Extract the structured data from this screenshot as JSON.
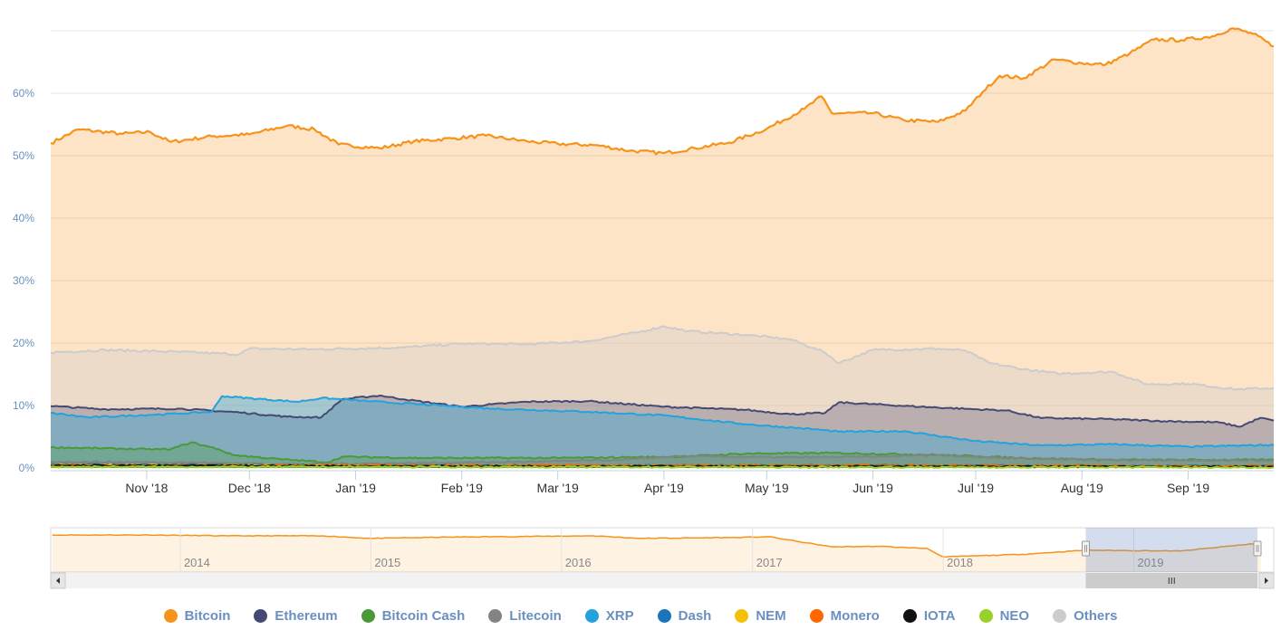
{
  "chart_data": {
    "type": "area",
    "title": "",
    "xlabel": "",
    "ylabel": "",
    "ylim": [
      0,
      70
    ],
    "y_ticks": [
      "0%",
      "10%",
      "20%",
      "30%",
      "40%",
      "50%",
      "60%"
    ],
    "x_ticks": [
      "Nov '18",
      "Dec '18",
      "Jan '19",
      "Feb '19",
      "Mar '19",
      "Apr '19",
      "May '19",
      "Jun '19",
      "Jul '19",
      "Aug '19",
      "Sep '19"
    ],
    "x_range": [
      "2018-10-04",
      "2019-09-26"
    ],
    "grid": true,
    "legend_position": "bottom",
    "series": [
      {
        "name": "Bitcoin",
        "color": "#f7931a",
        "points": [
          [
            "2018-10-04",
            52
          ],
          [
            "2018-10-12",
            54.2
          ],
          [
            "2018-10-25",
            53.5
          ],
          [
            "2018-11-02",
            53.8
          ],
          [
            "2018-11-08",
            52.2
          ],
          [
            "2018-11-20",
            53.1
          ],
          [
            "2018-12-01",
            53.4
          ],
          [
            "2018-12-12",
            54.8
          ],
          [
            "2018-12-20",
            54.2
          ],
          [
            "2018-12-27",
            51.8
          ],
          [
            "2019-01-08",
            51.2
          ],
          [
            "2019-01-18",
            52.3
          ],
          [
            "2019-01-30",
            52.8
          ],
          [
            "2019-02-08",
            53.2
          ],
          [
            "2019-02-20",
            52.3
          ],
          [
            "2019-03-01",
            51.9
          ],
          [
            "2019-03-12",
            51.7
          ],
          [
            "2019-03-22",
            50.8
          ],
          [
            "2019-04-01",
            50.4
          ],
          [
            "2019-04-10",
            51.2
          ],
          [
            "2019-04-20",
            52.1
          ],
          [
            "2019-05-01",
            54.3
          ],
          [
            "2019-05-12",
            57.5
          ],
          [
            "2019-05-17",
            59.5
          ],
          [
            "2019-05-20",
            56.8
          ],
          [
            "2019-06-01",
            56.8
          ],
          [
            "2019-06-10",
            55.7
          ],
          [
            "2019-06-20",
            55.4
          ],
          [
            "2019-06-28",
            57.2
          ],
          [
            "2019-07-03",
            60.2
          ],
          [
            "2019-07-08",
            62.8
          ],
          [
            "2019-07-15",
            62.4
          ],
          [
            "2019-07-24",
            65.4
          ],
          [
            "2019-08-01",
            64.8
          ],
          [
            "2019-08-08",
            64.6
          ],
          [
            "2019-08-15",
            66.4
          ],
          [
            "2019-08-22",
            68.6
          ],
          [
            "2019-08-30",
            68.5
          ],
          [
            "2019-09-08",
            69.1
          ],
          [
            "2019-09-14",
            70.4
          ],
          [
            "2019-09-20",
            69.5
          ],
          [
            "2019-09-26",
            67.5
          ]
        ]
      },
      {
        "name": "Others",
        "color": "#cccccc",
        "points": [
          [
            "2018-10-04",
            18.5
          ],
          [
            "2018-10-20",
            18.9
          ],
          [
            "2018-11-10",
            18.6
          ],
          [
            "2018-11-28",
            18.2
          ],
          [
            "2018-12-01",
            19.1
          ],
          [
            "2018-12-20",
            19.0
          ],
          [
            "2019-01-15",
            19.3
          ],
          [
            "2019-02-01",
            19.9
          ],
          [
            "2019-02-20",
            19.8
          ],
          [
            "2019-03-10",
            20.3
          ],
          [
            "2019-03-25",
            21.8
          ],
          [
            "2019-04-01",
            22.7
          ],
          [
            "2019-04-08",
            21.9
          ],
          [
            "2019-04-25",
            21.3
          ],
          [
            "2019-05-08",
            20.6
          ],
          [
            "2019-05-18",
            18.5
          ],
          [
            "2019-05-22",
            16.8
          ],
          [
            "2019-06-01",
            18.9
          ],
          [
            "2019-06-20",
            19.1
          ],
          [
            "2019-06-28",
            18.8
          ],
          [
            "2019-07-05",
            16.8
          ],
          [
            "2019-07-15",
            15.8
          ],
          [
            "2019-07-25",
            15.1
          ],
          [
            "2019-08-10",
            15.4
          ],
          [
            "2019-08-20",
            13.4
          ],
          [
            "2019-09-01",
            13.5
          ],
          [
            "2019-09-15",
            12.6
          ],
          [
            "2019-09-26",
            12.8
          ]
        ]
      },
      {
        "name": "Ethereum",
        "color": "#454a75",
        "points": [
          [
            "2018-10-04",
            9.9
          ],
          [
            "2018-10-20",
            9.4
          ],
          [
            "2018-11-10",
            9.5
          ],
          [
            "2018-11-28",
            8.9
          ],
          [
            "2018-12-12",
            8.2
          ],
          [
            "2018-12-22",
            8.1
          ],
          [
            "2018-12-28",
            11.0
          ],
          [
            "2019-01-08",
            11.6
          ],
          [
            "2019-01-15",
            11.0
          ],
          [
            "2019-02-01",
            9.8
          ],
          [
            "2019-02-20",
            10.6
          ],
          [
            "2019-03-10",
            10.7
          ],
          [
            "2019-04-01",
            9.8
          ],
          [
            "2019-04-25",
            9.3
          ],
          [
            "2019-05-08",
            8.6
          ],
          [
            "2019-05-18",
            8.8
          ],
          [
            "2019-05-22",
            10.5
          ],
          [
            "2019-06-15",
            9.8
          ],
          [
            "2019-07-01",
            9.4
          ],
          [
            "2019-07-10",
            9.2
          ],
          [
            "2019-07-20",
            8.0
          ],
          [
            "2019-08-10",
            7.8
          ],
          [
            "2019-08-25",
            7.5
          ],
          [
            "2019-09-10",
            7.3
          ],
          [
            "2019-09-16",
            6.6
          ],
          [
            "2019-09-22",
            8.0
          ],
          [
            "2019-09-26",
            7.6
          ]
        ]
      },
      {
        "name": "XRP",
        "color": "#23a3dd",
        "points": [
          [
            "2018-10-04",
            8.8
          ],
          [
            "2018-10-15",
            8.1
          ],
          [
            "2018-11-10",
            8.7
          ],
          [
            "2018-11-20",
            9.0
          ],
          [
            "2018-11-23",
            11.5
          ],
          [
            "2018-12-15",
            10.6
          ],
          [
            "2018-12-22",
            11.2
          ],
          [
            "2019-01-10",
            10.5
          ],
          [
            "2019-02-01",
            9.8
          ],
          [
            "2019-02-10",
            9.5
          ],
          [
            "2019-03-10",
            9.0
          ],
          [
            "2019-04-01",
            8.4
          ],
          [
            "2019-04-25",
            7.0
          ],
          [
            "2019-05-15",
            6.2
          ],
          [
            "2019-05-22",
            5.8
          ],
          [
            "2019-06-10",
            5.9
          ],
          [
            "2019-07-01",
            4.3
          ],
          [
            "2019-07-20",
            3.6
          ],
          [
            "2019-08-10",
            3.8
          ],
          [
            "2019-09-01",
            3.4
          ],
          [
            "2019-09-26",
            3.7
          ]
        ]
      },
      {
        "name": "Bitcoin Cash",
        "color": "#4a9a39",
        "points": [
          [
            "2018-10-04",
            3.3
          ],
          [
            "2018-11-01",
            3.0
          ],
          [
            "2018-11-08",
            3.0
          ],
          [
            "2018-11-14",
            4.1
          ],
          [
            "2018-11-22",
            3.0
          ],
          [
            "2018-11-26",
            2.1
          ],
          [
            "2018-12-10",
            1.4
          ],
          [
            "2018-12-24",
            0.9
          ],
          [
            "2018-12-28",
            1.8
          ],
          [
            "2019-01-20",
            1.6
          ],
          [
            "2019-03-01",
            1.6
          ],
          [
            "2019-04-05",
            1.8
          ],
          [
            "2019-04-25",
            2.3
          ],
          [
            "2019-05-20",
            2.4
          ],
          [
            "2019-06-20",
            2.1
          ],
          [
            "2019-07-15",
            1.6
          ],
          [
            "2019-08-10",
            1.3
          ],
          [
            "2019-09-26",
            1.3
          ]
        ]
      },
      {
        "name": "Litecoin",
        "color": "#838383",
        "points": [
          [
            "2018-10-04",
            1.0
          ],
          [
            "2018-11-10",
            0.9
          ],
          [
            "2018-12-15",
            0.6
          ],
          [
            "2019-01-20",
            0.8
          ],
          [
            "2019-02-20",
            1.0
          ],
          [
            "2019-03-20",
            1.3
          ],
          [
            "2019-04-05",
            1.9
          ],
          [
            "2019-05-05",
            1.7
          ],
          [
            "2019-06-01",
            1.8
          ],
          [
            "2019-06-20",
            2.1
          ],
          [
            "2019-07-10",
            1.6
          ],
          [
            "2019-08-10",
            1.3
          ],
          [
            "2019-09-26",
            1.2
          ]
        ]
      },
      {
        "name": "Dash",
        "color": "#1c75bc",
        "points": [
          [
            "2018-10-04",
            0.6
          ],
          [
            "2019-01-01",
            0.4
          ],
          [
            "2019-06-01",
            0.4
          ],
          [
            "2019-09-26",
            0.3
          ]
        ]
      },
      {
        "name": "NEM",
        "color": "#f5c008",
        "points": [
          [
            "2018-10-04",
            0.5
          ],
          [
            "2019-03-01",
            0.3
          ],
          [
            "2019-09-26",
            0.2
          ]
        ]
      },
      {
        "name": "Monero",
        "color": "#ff6600",
        "points": [
          [
            "2018-10-04",
            0.4
          ],
          [
            "2019-06-01",
            0.4
          ],
          [
            "2019-09-26",
            0.3
          ]
        ]
      },
      {
        "name": "IOTA",
        "color": "#111111",
        "points": [
          [
            "2018-10-04",
            0.4
          ],
          [
            "2019-01-15",
            0.3
          ],
          [
            "2019-09-26",
            0.2
          ]
        ]
      },
      {
        "name": "NEO",
        "color": "#9ad02a",
        "points": [
          [
            "2018-10-04",
            0.2
          ],
          [
            "2019-09-26",
            0.1
          ]
        ]
      }
    ]
  },
  "navigator": {
    "year_labels": [
      "2014",
      "2015",
      "2016",
      "2017",
      "2018",
      "2019"
    ],
    "bitcoin_points": [
      [
        "2013-05",
        88
      ],
      [
        "2013-11",
        88
      ],
      [
        "2014-04",
        86
      ],
      [
        "2014-10",
        86
      ],
      [
        "2015-01",
        80
      ],
      [
        "2015-06",
        83
      ],
      [
        "2015-12",
        85
      ],
      [
        "2016-03",
        86
      ],
      [
        "2016-06",
        80
      ],
      [
        "2016-12",
        82
      ],
      [
        "2017-02",
        84
      ],
      [
        "2017-04",
        72
      ],
      [
        "2017-06",
        60
      ],
      [
        "2017-09",
        61
      ],
      [
        "2017-12",
        56
      ],
      [
        "2018-01",
        36
      ],
      [
        "2018-06",
        42
      ],
      [
        "2018-10",
        52
      ],
      [
        "2019-04",
        50
      ],
      [
        "2019-09",
        69
      ]
    ]
  },
  "legend": {
    "items": [
      {
        "label": "Bitcoin",
        "color": "#f7931a"
      },
      {
        "label": "Ethereum",
        "color": "#454a75"
      },
      {
        "label": "Bitcoin Cash",
        "color": "#4a9a39"
      },
      {
        "label": "Litecoin",
        "color": "#838383"
      },
      {
        "label": "XRP",
        "color": "#23a3dd"
      },
      {
        "label": "Dash",
        "color": "#1c75bc"
      },
      {
        "label": "NEM",
        "color": "#f5c008"
      },
      {
        "label": "Monero",
        "color": "#ff6600"
      },
      {
        "label": "IOTA",
        "color": "#111111"
      },
      {
        "label": "NEO",
        "color": "#9ad02a"
      },
      {
        "label": "Others",
        "color": "#cccccc"
      }
    ]
  }
}
